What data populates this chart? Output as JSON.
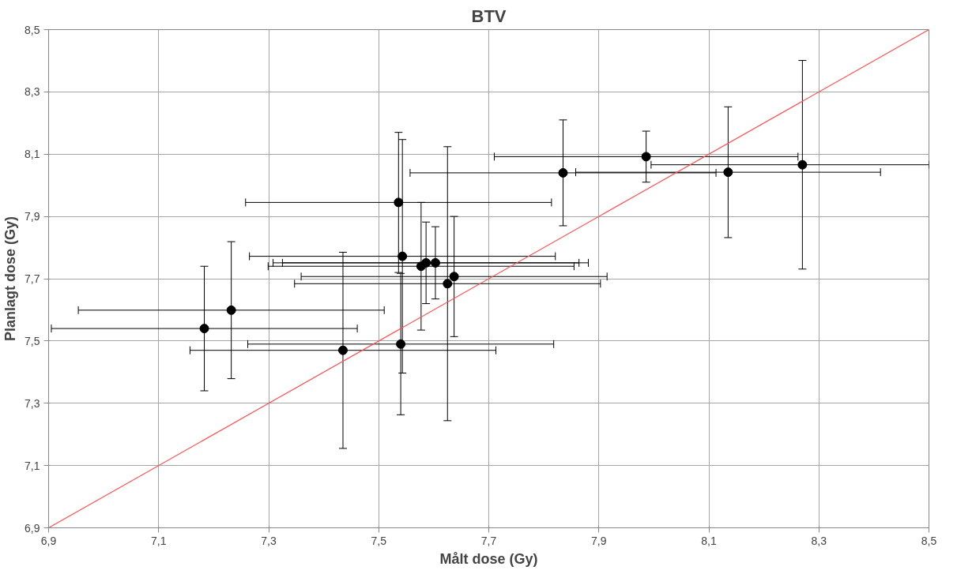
{
  "chart_data": {
    "type": "scatter",
    "title": "BTV",
    "xlabel": "Målt dose (Gy)",
    "ylabel": "Planlagt dose (Gy)",
    "xlim": [
      6.9,
      8.5
    ],
    "ylim": [
      6.9,
      8.5
    ],
    "xticks": [
      {
        "value": 6.9,
        "label": "6,9"
      },
      {
        "value": 7.1,
        "label": "7,1"
      },
      {
        "value": 7.3,
        "label": "7,3"
      },
      {
        "value": 7.5,
        "label": "7,5"
      },
      {
        "value": 7.7,
        "label": "7,7"
      },
      {
        "value": 7.9,
        "label": "7,9"
      },
      {
        "value": 8.1,
        "label": "8,1"
      },
      {
        "value": 8.3,
        "label": "8,3"
      },
      {
        "value": 8.5,
        "label": "8,5"
      }
    ],
    "yticks": [
      {
        "value": 6.9,
        "label": "6,9"
      },
      {
        "value": 7.1,
        "label": "7,1"
      },
      {
        "value": 7.3,
        "label": "7,3"
      },
      {
        "value": 7.5,
        "label": "7,5"
      },
      {
        "value": 7.7,
        "label": "7,7"
      },
      {
        "value": 7.9,
        "label": "7,9"
      },
      {
        "value": 8.1,
        "label": "8,1"
      },
      {
        "value": 8.3,
        "label": "8,3"
      },
      {
        "value": 8.5,
        "label": "8,5"
      }
    ],
    "grid": true,
    "marker": "circle",
    "series": [
      {
        "type": "scatter",
        "color": "#000000",
        "x": [
          7.183,
          7.232,
          7.435,
          7.54,
          7.536,
          7.543,
          7.577,
          7.586,
          7.603,
          7.625,
          7.637,
          7.835,
          7.986,
          8.135,
          8.27
        ],
        "values": [
          7.54,
          7.599,
          7.47,
          7.49,
          7.945,
          7.772,
          7.74,
          7.751,
          7.751,
          7.684,
          7.707,
          8.04,
          8.092,
          8.042,
          8.066
        ],
        "errors": [
          0.2,
          0.22,
          0.315,
          0.227,
          0.225,
          0.375,
          0.205,
          0.131,
          0.116,
          0.44,
          0.193,
          0.17,
          0.082,
          0.21,
          0.335
        ],
        "xerrors": [
          0.278,
          0.278,
          0.278,
          0.278,
          0.278,
          0.278,
          0.278,
          0.278,
          0.278,
          0.278,
          0.278,
          0.278,
          0.276,
          0.277,
          [
            7.995,
            8.5
          ]
        ]
      },
      {
        "type": "line",
        "color": "#ff5050",
        "marker": "none",
        "x": [
          6.9,
          8.5
        ],
        "values": [
          6.9,
          8.5
        ]
      }
    ]
  }
}
